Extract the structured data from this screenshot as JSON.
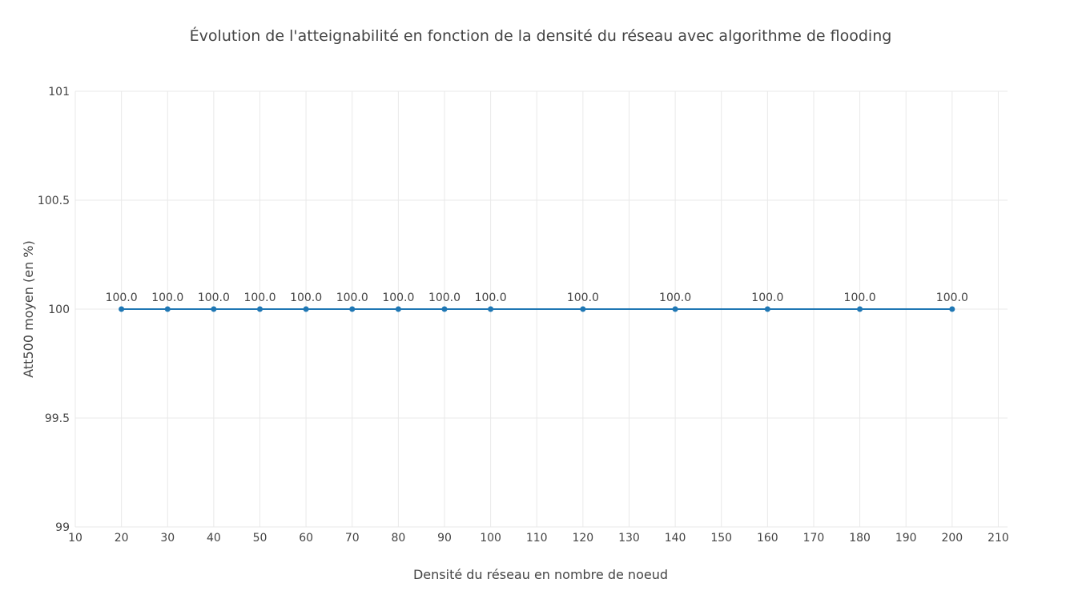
{
  "chart_data": {
    "type": "line",
    "title": "Évolution de l'atteignabilité en fonction de la densité du réseau avec algorithme de flooding",
    "xlabel": "Densité du réseau en nombre de noeud",
    "ylabel": "Att500 moyen (en %)",
    "xlim": [
      10,
      212
    ],
    "ylim": [
      99,
      101
    ],
    "x_ticks": [
      10,
      20,
      30,
      40,
      50,
      60,
      70,
      80,
      90,
      100,
      110,
      120,
      130,
      140,
      150,
      160,
      170,
      180,
      190,
      200,
      210
    ],
    "y_ticks": [
      99,
      99.5,
      100,
      100.5,
      101
    ],
    "y_tick_labels": [
      "99",
      "99.5",
      "100",
      "100.5",
      "101"
    ],
    "grid": true,
    "legend": "none",
    "series": [
      {
        "color": "#1f77b4",
        "x": [
          20,
          30,
          40,
          50,
          60,
          70,
          80,
          90,
          100,
          120,
          140,
          160,
          180,
          200
        ],
        "y": [
          100,
          100,
          100,
          100,
          100,
          100,
          100,
          100,
          100,
          100,
          100,
          100,
          100,
          100
        ],
        "labels": [
          "100.0",
          "100.0",
          "100.0",
          "100.0",
          "100.0",
          "100.0",
          "100.0",
          "100.0",
          "100.0",
          "100.0",
          "100.0",
          "100.0",
          "100.0",
          "100.0"
        ]
      }
    ]
  }
}
